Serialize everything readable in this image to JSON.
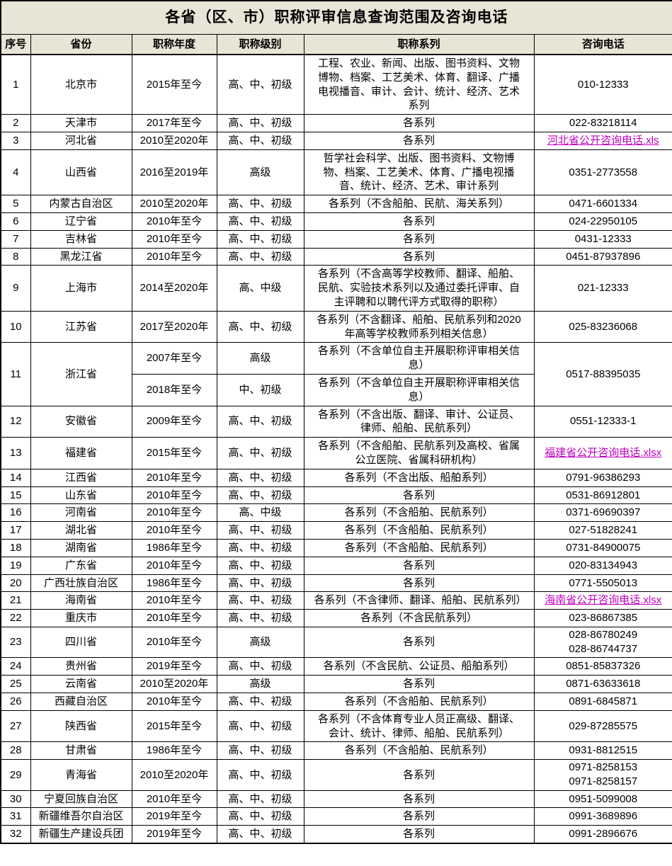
{
  "table": {
    "title": "各省（区、市）职称评审信息查询范围及咨询电话",
    "columns": [
      "序号",
      "省份",
      "职称年度",
      "职称级别",
      "职称系列",
      "咨询电话"
    ],
    "colors": {
      "header_bg": "#e8e5d7",
      "link": "#c000c0",
      "border": "#000000",
      "text": "#000000"
    },
    "rows": [
      {
        "no": "1",
        "province": "北京市",
        "year": "2015年至今",
        "level": "高、中、初级",
        "series": "工程、农业、新闻、出版、图书资料、文物博物、档案、工艺美术、体育、翻译、广播电视播音、审计、会计、统计、经济、艺术系列",
        "phone": "010-12333"
      },
      {
        "no": "2",
        "province": "天津市",
        "year": "2017年至今",
        "level": "高、中、初级",
        "series": "各系列",
        "phone": "022-83218114"
      },
      {
        "no": "3",
        "province": "河北省",
        "year": "2010至2020年",
        "level": "高、中、初级",
        "series": "各系列",
        "phone_link": "河北省公开咨询电话.xls"
      },
      {
        "no": "4",
        "province": "山西省",
        "year": "2016至2019年",
        "level": "高级",
        "series": "哲学社会科学、出版、图书资料、文物博物、档案、工艺美术、体育、广播电视播音、统计、经济、艺术、审计系列",
        "phone": "0351-2773558"
      },
      {
        "no": "5",
        "province": "内蒙古自治区",
        "year": "2010至2020年",
        "level": "高、中、初级",
        "series": "各系列（不含船舶、民航、海关系列）",
        "phone": "0471-6601334"
      },
      {
        "no": "6",
        "province": "辽宁省",
        "year": "2010年至今",
        "level": "高、中、初级",
        "series": "各系列",
        "phone": "024-22950105"
      },
      {
        "no": "7",
        "province": "吉林省",
        "year": "2010年至今",
        "level": "高、中、初级",
        "series": "各系列",
        "phone": "0431-12333"
      },
      {
        "no": "8",
        "province": "黑龙江省",
        "year": "2010年至今",
        "level": "高、中、初级",
        "series": "各系列",
        "phone": "0451-87937896"
      },
      {
        "no": "9",
        "province": "上海市",
        "year": "2014至2020年",
        "level": "高、中级",
        "series": "各系列（不含高等学校教师、翻译、船舶、民航、实验技术系列以及通过委托评审、自主评聘和以聘代评方式取得的职称）",
        "phone": "021-12333"
      },
      {
        "no": "10",
        "province": "江苏省",
        "year": "2017至2020年",
        "level": "高、中、初级",
        "series": "各系列（不含翻译、船舶、民航系列和2020年高等学校教师系列相关信息）",
        "phone": "025-83236068"
      },
      {
        "no": "11",
        "province": "浙江省",
        "phone": "0517-88395035",
        "subrows": [
          {
            "year": "2007年至今",
            "level": "高级",
            "series": "各系列（不含单位自主开展职称评审相关信息）"
          },
          {
            "year": "2018年至今",
            "level": "中、初级",
            "series": "各系列（不含单位自主开展职称评审相关信息）"
          }
        ]
      },
      {
        "no": "12",
        "province": "安徽省",
        "year": "2009年至今",
        "level": "高、中、初级",
        "series": "各系列（不含出版、翻译、审计、公证员、律师、船舶、民航系列）",
        "phone": "0551-12333-1"
      },
      {
        "no": "13",
        "province": "福建省",
        "year": "2015年至今",
        "level": "高、中、初级",
        "series": "各系列（不含船舶、民航系列及高校、省属公立医院、省属科研机构）",
        "phone_link": "福建省公开咨询电话.xlsx"
      },
      {
        "no": "14",
        "province": "江西省",
        "year": "2010年至今",
        "level": "高、中、初级",
        "series": "各系列（不含出版、船舶系列）",
        "phone": "0791-96386293"
      },
      {
        "no": "15",
        "province": "山东省",
        "year": "2010年至今",
        "level": "高、中、初级",
        "series": "各系列",
        "phone": "0531-86912801"
      },
      {
        "no": "16",
        "province": "河南省",
        "year": "2010年至今",
        "level": "高、中级",
        "series": "各系列（不含船舶、民航系列）",
        "phone": "0371-69690397"
      },
      {
        "no": "17",
        "province": "湖北省",
        "year": "2010年至今",
        "level": "高、中、初级",
        "series": "各系列（不含船舶、民航系列）",
        "phone": "027-51828241"
      },
      {
        "no": "18",
        "province": "湖南省",
        "year": "1986年至今",
        "level": "高、中、初级",
        "series": "各系列（不含船舶、民航系列）",
        "phone": "0731-84900075"
      },
      {
        "no": "19",
        "province": "广东省",
        "year": "2010年至今",
        "level": "高、中、初级",
        "series": "各系列",
        "phone": "020-83134943"
      },
      {
        "no": "20",
        "province": "广西壮族自治区",
        "year": "1986年至今",
        "level": "高、中、初级",
        "series": "各系列",
        "phone": "0771-5505013"
      },
      {
        "no": "21",
        "province": "海南省",
        "year": "2010年至今",
        "level": "高、中、初级",
        "series": "各系列（不含律师、翻译、船舶、民航系列）",
        "phone_link": "海南省公开咨询电话.xlsx"
      },
      {
        "no": "22",
        "province": "重庆市",
        "year": "2010年至今",
        "level": "高、中、初级",
        "series": "各系列（不含民航系列）",
        "phone": "023-86867385"
      },
      {
        "no": "23",
        "province": "四川省",
        "year": "2010年至今",
        "level": "高级",
        "series": "各系列",
        "phones": [
          "028-86780249",
          "028-86744737"
        ]
      },
      {
        "no": "24",
        "province": "贵州省",
        "year": "2019年至今",
        "level": "高、中、初级",
        "series": "各系列（不含民航、公证员、船舶系列）",
        "phone": "0851-85837326"
      },
      {
        "no": "25",
        "province": "云南省",
        "year": "2010至2020年",
        "level": "高级",
        "series": "各系列",
        "phone": "0871-63633618"
      },
      {
        "no": "26",
        "province": "西藏自治区",
        "year": "2010年至今",
        "level": "高、中、初级",
        "series": "各系列（不含船舶、民航系列）",
        "phone": "0891-6845871"
      },
      {
        "no": "27",
        "province": "陕西省",
        "year": "2015年至今",
        "level": "高、中、初级",
        "series": "各系列（不含体育专业人员正高级、翻译、会计、统计、律师、船舶、民航系列）",
        "phone": "029-87285575"
      },
      {
        "no": "28",
        "province": "甘肃省",
        "year": "1986年至今",
        "level": "高、中、初级",
        "series": "各系列（不含船舶、民航系列）",
        "phone": "0931-8812515"
      },
      {
        "no": "29",
        "province": "青海省",
        "year": "2010至2020年",
        "level": "高、中、初级",
        "series": "各系列",
        "phones": [
          "0971-8258153",
          "0971-8258157"
        ]
      },
      {
        "no": "30",
        "province": "宁夏回族自治区",
        "year": "2010年至今",
        "level": "高、中、初级",
        "series": "各系列",
        "phone": "0951-5099008"
      },
      {
        "no": "31",
        "province": "新疆维吾尔自治区",
        "year": "2019年至今",
        "level": "高、中、初级",
        "series": "各系列",
        "phone": "0991-3689896"
      },
      {
        "no": "32",
        "province": "新疆生产建设兵团",
        "year": "2019年至今",
        "level": "高、中、初级",
        "series": "各系列",
        "phone": "0991-2896676"
      }
    ]
  }
}
